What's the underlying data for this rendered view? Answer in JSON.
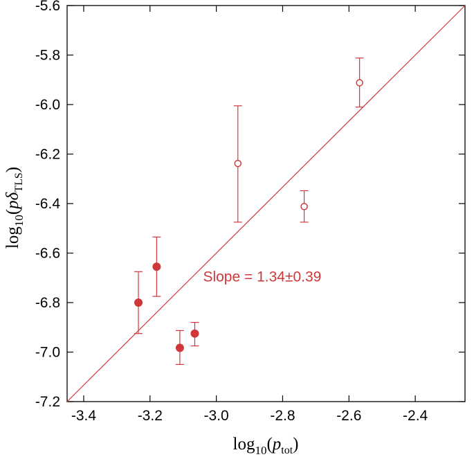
{
  "chart_data": {
    "type": "scatter",
    "xlabel": {
      "base": "log",
      "sub10": "10",
      "open": "(",
      "var": "p",
      "sub": "tot",
      "close": ")"
    },
    "ylabel": {
      "base": "log",
      "sub10": "10",
      "open": "(",
      "var": "pδ",
      "sub": "TLS",
      "close": ")"
    },
    "xlim": [
      -3.45,
      -2.25
    ],
    "ylim": [
      -7.2,
      -5.6
    ],
    "xticks": [
      -3.4,
      -3.2,
      -3.0,
      -2.8,
      -2.6,
      -2.4
    ],
    "xtick_labels": [
      "-3.4",
      "-3.2",
      "-3.0",
      "-2.8",
      "-2.6",
      "-2.4"
    ],
    "yticks": [
      -7.2,
      -7.0,
      -6.8,
      -6.6,
      -6.4,
      -6.2,
      -6.0,
      -5.8,
      -5.6
    ],
    "ytick_labels": [
      "-7.2",
      "-7.0",
      "-6.8",
      "-6.6",
      "-6.4",
      "-6.2",
      "-6.0",
      "-5.8",
      "-5.6"
    ],
    "color": "#d0373b",
    "grid": false,
    "series": [
      {
        "marker": "filled",
        "points": [
          {
            "x": -3.235,
            "y": -6.8,
            "ylo": -6.925,
            "yhi": -6.675
          },
          {
            "x": -3.18,
            "y": -6.655,
            "ylo": -6.775,
            "yhi": -6.535
          },
          {
            "x": -3.11,
            "y": -6.983,
            "ylo": -7.05,
            "yhi": -6.913
          },
          {
            "x": -3.065,
            "y": -6.925,
            "ylo": -6.975,
            "yhi": -6.88
          }
        ]
      },
      {
        "marker": "open",
        "points": [
          {
            "x": -2.935,
            "y": -6.238,
            "ylo": -6.475,
            "yhi": -6.005
          },
          {
            "x": -2.735,
            "y": -6.412,
            "ylo": -6.475,
            "yhi": -6.348
          },
          {
            "x": -2.568,
            "y": -5.912,
            "ylo": -6.01,
            "yhi": -5.812
          }
        ]
      }
    ],
    "fit_line": {
      "x": [
        -3.45,
        -2.25
      ],
      "y": [
        -7.2,
        -5.6
      ]
    },
    "annotation": {
      "text": "Slope = 1.34±0.39",
      "x": -3.04,
      "y": -6.715
    }
  }
}
